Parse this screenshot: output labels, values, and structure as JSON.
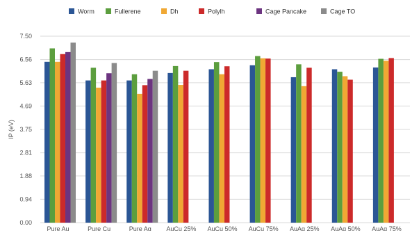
{
  "chart_data": {
    "type": "bar",
    "title": "",
    "xlabel": "",
    "ylabel": "IP (eV)",
    "ylim": [
      0,
      7.5
    ],
    "yticks": [
      "0.00",
      "0.94",
      "1.88",
      "2.81",
      "3.75",
      "4.69",
      "5.63",
      "6.56",
      "7.50"
    ],
    "grid": true,
    "legend_position": "top",
    "categories": [
      "Pure Au",
      "Pure Cu",
      "Pure Ag",
      "AuCu 25%",
      "AuCu 50%",
      "AuCu 75%",
      "AuAg 25%",
      "AuAg 50%",
      "AuAg 75%"
    ],
    "series": [
      {
        "name": "Worm",
        "color": "#2b5695",
        "values": [
          6.47,
          5.72,
          5.72,
          6.02,
          6.17,
          6.33,
          5.85,
          6.17,
          6.24
        ]
      },
      {
        "name": "Fullerene",
        "color": "#5c9e3e",
        "values": [
          7.01,
          6.23,
          5.97,
          6.3,
          6.46,
          6.7,
          6.37,
          6.07,
          6.59
        ]
      },
      {
        "name": "Dh",
        "color": "#f0a834",
        "values": [
          6.47,
          5.43,
          5.18,
          5.54,
          5.97,
          6.61,
          5.49,
          5.89,
          6.51
        ]
      },
      {
        "name": "Polylh",
        "color": "#cc2a2a",
        "values": [
          6.78,
          5.72,
          5.53,
          6.11,
          6.29,
          6.6,
          6.23,
          5.75,
          6.62
        ]
      },
      {
        "name": "Cage Pancake",
        "color": "#6c3480",
        "values": [
          6.86,
          6.01,
          5.78,
          null,
          null,
          null,
          null,
          null,
          null
        ]
      },
      {
        "name": "Cage TO",
        "color": "#8b8b8b",
        "values": [
          7.24,
          6.42,
          6.11,
          null,
          null,
          null,
          null,
          null,
          null
        ]
      }
    ]
  }
}
